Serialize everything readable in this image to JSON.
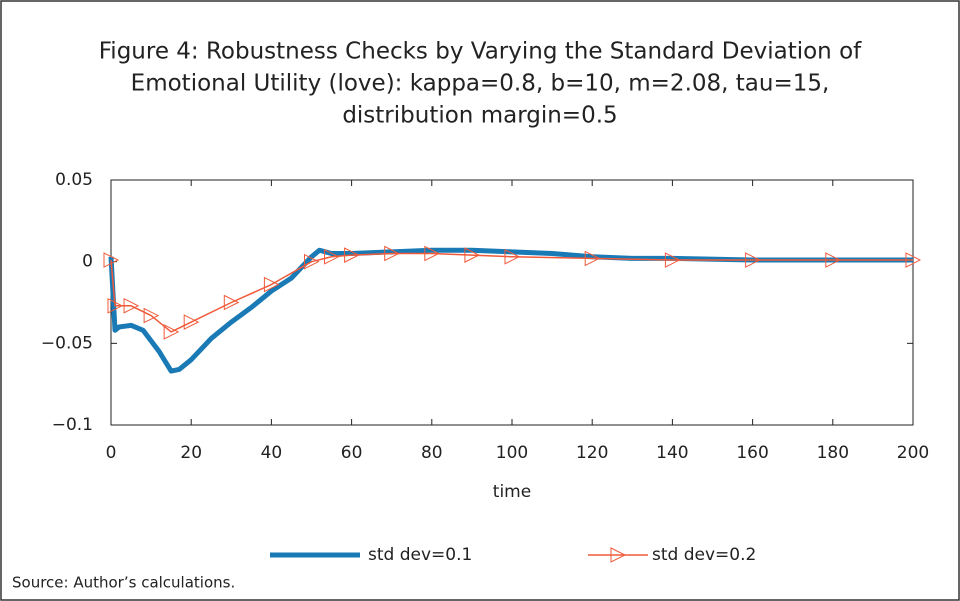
{
  "chart_data": {
    "type": "line",
    "title": [
      "Figure 4: Robustness Checks by Varying the Standard Deviation of",
      "Emotional Utility (love): kappa=0.8, b=10, m=2.08, tau=15,",
      "distribution margin=0.5"
    ],
    "xlabel": "time",
    "source": "Source: Author’s calculations.",
    "xlim": [
      0,
      200
    ],
    "xticks": [
      0,
      20,
      40,
      60,
      80,
      100,
      120,
      140,
      160,
      180,
      200
    ],
    "ylim": [
      -0.1,
      0.05
    ],
    "yticks": [
      {
        "value": -0.1,
        "label": "−0.1"
      },
      {
        "value": -0.05,
        "label": "−0.05"
      },
      0,
      0.05
    ],
    "series": [
      {
        "name": "std dev=0.1",
        "color": "#1a7ab5",
        "marker": "none",
        "x": [
          0,
          1,
          2,
          5,
          8,
          12,
          15,
          17,
          20,
          25,
          30,
          35,
          40,
          45,
          50,
          52,
          55,
          60,
          70,
          80,
          90,
          100,
          110,
          120,
          130,
          140,
          160,
          180,
          200
        ],
        "values": [
          0.003,
          -0.042,
          -0.04,
          -0.039,
          -0.042,
          -0.055,
          -0.067,
          -0.066,
          -0.06,
          -0.047,
          -0.037,
          -0.028,
          -0.018,
          -0.01,
          0.003,
          0.007,
          0.005,
          0.005,
          0.006,
          0.007,
          0.007,
          0.006,
          0.005,
          0.003,
          0.002,
          0.002,
          0.001,
          0.001,
          0.001
        ]
      },
      {
        "name": "std dev=0.2",
        "color": "#f05a3a",
        "marker": "triangle-right",
        "x": [
          0,
          1,
          5,
          10,
          15,
          20,
          30,
          40,
          50,
          55,
          60,
          70,
          80,
          90,
          100,
          120,
          140,
          160,
          180,
          200
        ],
        "values": [
          0.001,
          -0.027,
          -0.027,
          -0.033,
          -0.043,
          -0.037,
          -0.025,
          -0.014,
          0.0,
          0.003,
          0.004,
          0.005,
          0.005,
          0.004,
          0.003,
          0.002,
          0.001,
          0.001,
          0.001,
          0.001
        ]
      }
    ]
  }
}
